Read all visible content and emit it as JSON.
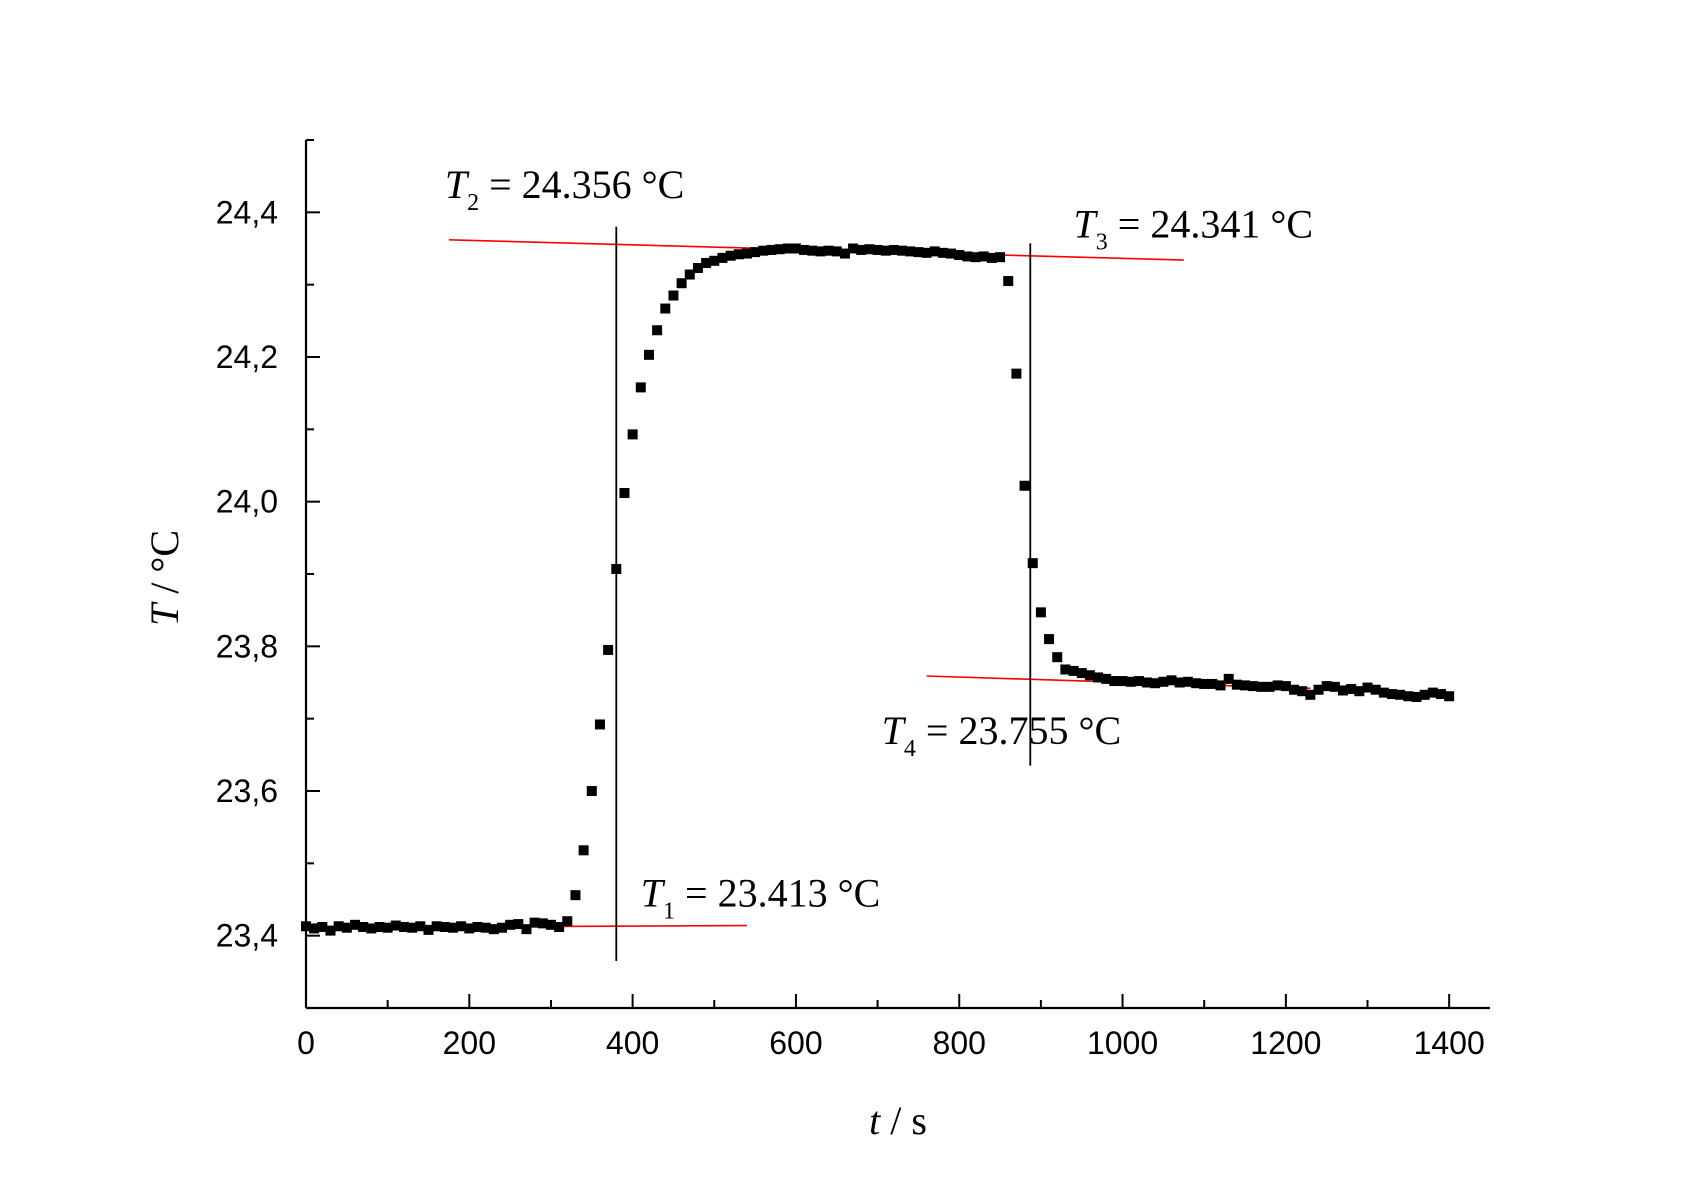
{
  "chart_data": {
    "type": "scatter",
    "title": "",
    "xlabel": {
      "var": "t",
      "unit": "/ s"
    },
    "ylabel": {
      "var": "T",
      "unit": "/ °C"
    },
    "xlim": [
      0,
      1450
    ],
    "ylim": [
      23.3,
      24.5
    ],
    "x_ticks": [
      0,
      200,
      400,
      600,
      800,
      1000,
      1200,
      1400
    ],
    "x_tick_labels": [
      "0",
      "200",
      "400",
      "600",
      "800",
      "1000",
      "1200",
      "1400"
    ],
    "y_ticks": [
      23.4,
      23.6,
      23.8,
      24.0,
      24.2,
      24.4
    ],
    "y_tick_labels": [
      "23,4",
      "23,6",
      "23,8",
      "24,0",
      "24,2",
      "24,4"
    ],
    "grid": false,
    "colors": {
      "points": "#000000",
      "fit_lines": "#ff0000",
      "vertical_lines": "#000000"
    },
    "series": [
      {
        "marker": "square",
        "points": [
          [
            0,
            23.413
          ],
          [
            10,
            23.41
          ],
          [
            20,
            23.412
          ],
          [
            30,
            23.407
          ],
          [
            40,
            23.413
          ],
          [
            50,
            23.411
          ],
          [
            60,
            23.415
          ],
          [
            70,
            23.412
          ],
          [
            80,
            23.41
          ],
          [
            90,
            23.412
          ],
          [
            100,
            23.411
          ],
          [
            110,
            23.414
          ],
          [
            120,
            23.412
          ],
          [
            130,
            23.411
          ],
          [
            140,
            23.413
          ],
          [
            150,
            23.408
          ],
          [
            160,
            23.413
          ],
          [
            170,
            23.412
          ],
          [
            180,
            23.411
          ],
          [
            190,
            23.413
          ],
          [
            200,
            23.41
          ],
          [
            210,
            23.412
          ],
          [
            220,
            23.411
          ],
          [
            230,
            23.409
          ],
          [
            240,
            23.411
          ],
          [
            250,
            23.415
          ],
          [
            260,
            23.416
          ],
          [
            270,
            23.409
          ],
          [
            280,
            23.418
          ],
          [
            290,
            23.417
          ],
          [
            300,
            23.415
          ],
          [
            310,
            23.412
          ],
          [
            320,
            23.42
          ],
          [
            330,
            23.456
          ],
          [
            340,
            23.518
          ],
          [
            350,
            23.6
          ],
          [
            360,
            23.692
          ],
          [
            370,
            23.795
          ],
          [
            380,
            23.907
          ],
          [
            390,
            24.012
          ],
          [
            400,
            24.093
          ],
          [
            410,
            24.158
          ],
          [
            420,
            24.203
          ],
          [
            430,
            24.237
          ],
          [
            440,
            24.267
          ],
          [
            450,
            24.285
          ],
          [
            460,
            24.302
          ],
          [
            470,
            24.314
          ],
          [
            480,
            24.323
          ],
          [
            490,
            24.33
          ],
          [
            500,
            24.333
          ],
          [
            510,
            24.337
          ],
          [
            520,
            24.34
          ],
          [
            530,
            24.342
          ],
          [
            540,
            24.343
          ],
          [
            550,
            24.345
          ],
          [
            560,
            24.347
          ],
          [
            570,
            24.348
          ],
          [
            580,
            24.349
          ],
          [
            590,
            24.35
          ],
          [
            600,
            24.35
          ],
          [
            610,
            24.348
          ],
          [
            620,
            24.347
          ],
          [
            630,
            24.346
          ],
          [
            640,
            24.347
          ],
          [
            650,
            24.346
          ],
          [
            660,
            24.343
          ],
          [
            670,
            24.35
          ],
          [
            680,
            24.348
          ],
          [
            690,
            24.349
          ],
          [
            700,
            24.348
          ],
          [
            710,
            24.347
          ],
          [
            720,
            24.348
          ],
          [
            730,
            24.347
          ],
          [
            740,
            24.346
          ],
          [
            750,
            24.345
          ],
          [
            760,
            24.344
          ],
          [
            770,
            24.346
          ],
          [
            780,
            24.344
          ],
          [
            790,
            24.343
          ],
          [
            800,
            24.341
          ],
          [
            810,
            24.339
          ],
          [
            820,
            24.338
          ],
          [
            830,
            24.339
          ],
          [
            840,
            24.337
          ],
          [
            850,
            24.338
          ],
          [
            860,
            24.305
          ],
          [
            870,
            24.177
          ],
          [
            880,
            24.022
          ],
          [
            890,
            23.915
          ],
          [
            900,
            23.847
          ],
          [
            910,
            23.81
          ],
          [
            920,
            23.785
          ],
          [
            930,
            23.768
          ],
          [
            940,
            23.766
          ],
          [
            950,
            23.763
          ],
          [
            960,
            23.76
          ],
          [
            970,
            23.757
          ],
          [
            980,
            23.755
          ],
          [
            990,
            23.752
          ],
          [
            1000,
            23.752
          ],
          [
            1010,
            23.751
          ],
          [
            1020,
            23.752
          ],
          [
            1030,
            23.75
          ],
          [
            1040,
            23.749
          ],
          [
            1050,
            23.751
          ],
          [
            1060,
            23.753
          ],
          [
            1070,
            23.75
          ],
          [
            1080,
            23.751
          ],
          [
            1090,
            23.749
          ],
          [
            1100,
            23.748
          ],
          [
            1110,
            23.748
          ],
          [
            1120,
            23.746
          ],
          [
            1130,
            23.755
          ],
          [
            1140,
            23.747
          ],
          [
            1150,
            23.746
          ],
          [
            1160,
            23.745
          ],
          [
            1170,
            23.744
          ],
          [
            1180,
            23.744
          ],
          [
            1190,
            23.746
          ],
          [
            1200,
            23.745
          ],
          [
            1210,
            23.74
          ],
          [
            1220,
            23.738
          ],
          [
            1230,
            23.733
          ],
          [
            1240,
            23.74
          ],
          [
            1250,
            23.745
          ],
          [
            1260,
            23.744
          ],
          [
            1270,
            23.739
          ],
          [
            1280,
            23.741
          ],
          [
            1290,
            23.738
          ],
          [
            1300,
            23.743
          ],
          [
            1310,
            23.74
          ],
          [
            1320,
            23.736
          ],
          [
            1330,
            23.734
          ],
          [
            1340,
            23.733
          ],
          [
            1350,
            23.731
          ],
          [
            1360,
            23.73
          ],
          [
            1370,
            23.733
          ],
          [
            1380,
            23.736
          ],
          [
            1390,
            23.734
          ],
          [
            1400,
            23.731
          ]
        ]
      }
    ],
    "fit_lines": [
      {
        "x": [
          0,
          540
        ],
        "y": [
          23.411,
          23.414
        ]
      },
      {
        "x": [
          175,
          1075
        ],
        "y": [
          24.362,
          24.334
        ]
      },
      {
        "x": [
          760,
          1230
        ],
        "y": [
          23.759,
          23.742
        ]
      }
    ],
    "vertical_lines": [
      {
        "x": 380,
        "y": [
          23.365,
          24.38
        ]
      },
      {
        "x": 887,
        "y": [
          23.635,
          24.357
        ]
      }
    ],
    "annotations": [
      {
        "var": "T",
        "sub": "1",
        "text": "= 23.413 °C",
        "x": 410,
        "y": 23.44
      },
      {
        "var": "T",
        "sub": "2",
        "text": "= 24.356 °C",
        "x": 170,
        "y": 24.42
      },
      {
        "var": "T",
        "sub": "3",
        "text": "= 24.341 °C",
        "x": 940,
        "y": 24.365
      },
      {
        "var": "T",
        "sub": "4",
        "text": "= 23.755 °C",
        "x": 705,
        "y": 23.665
      }
    ]
  }
}
